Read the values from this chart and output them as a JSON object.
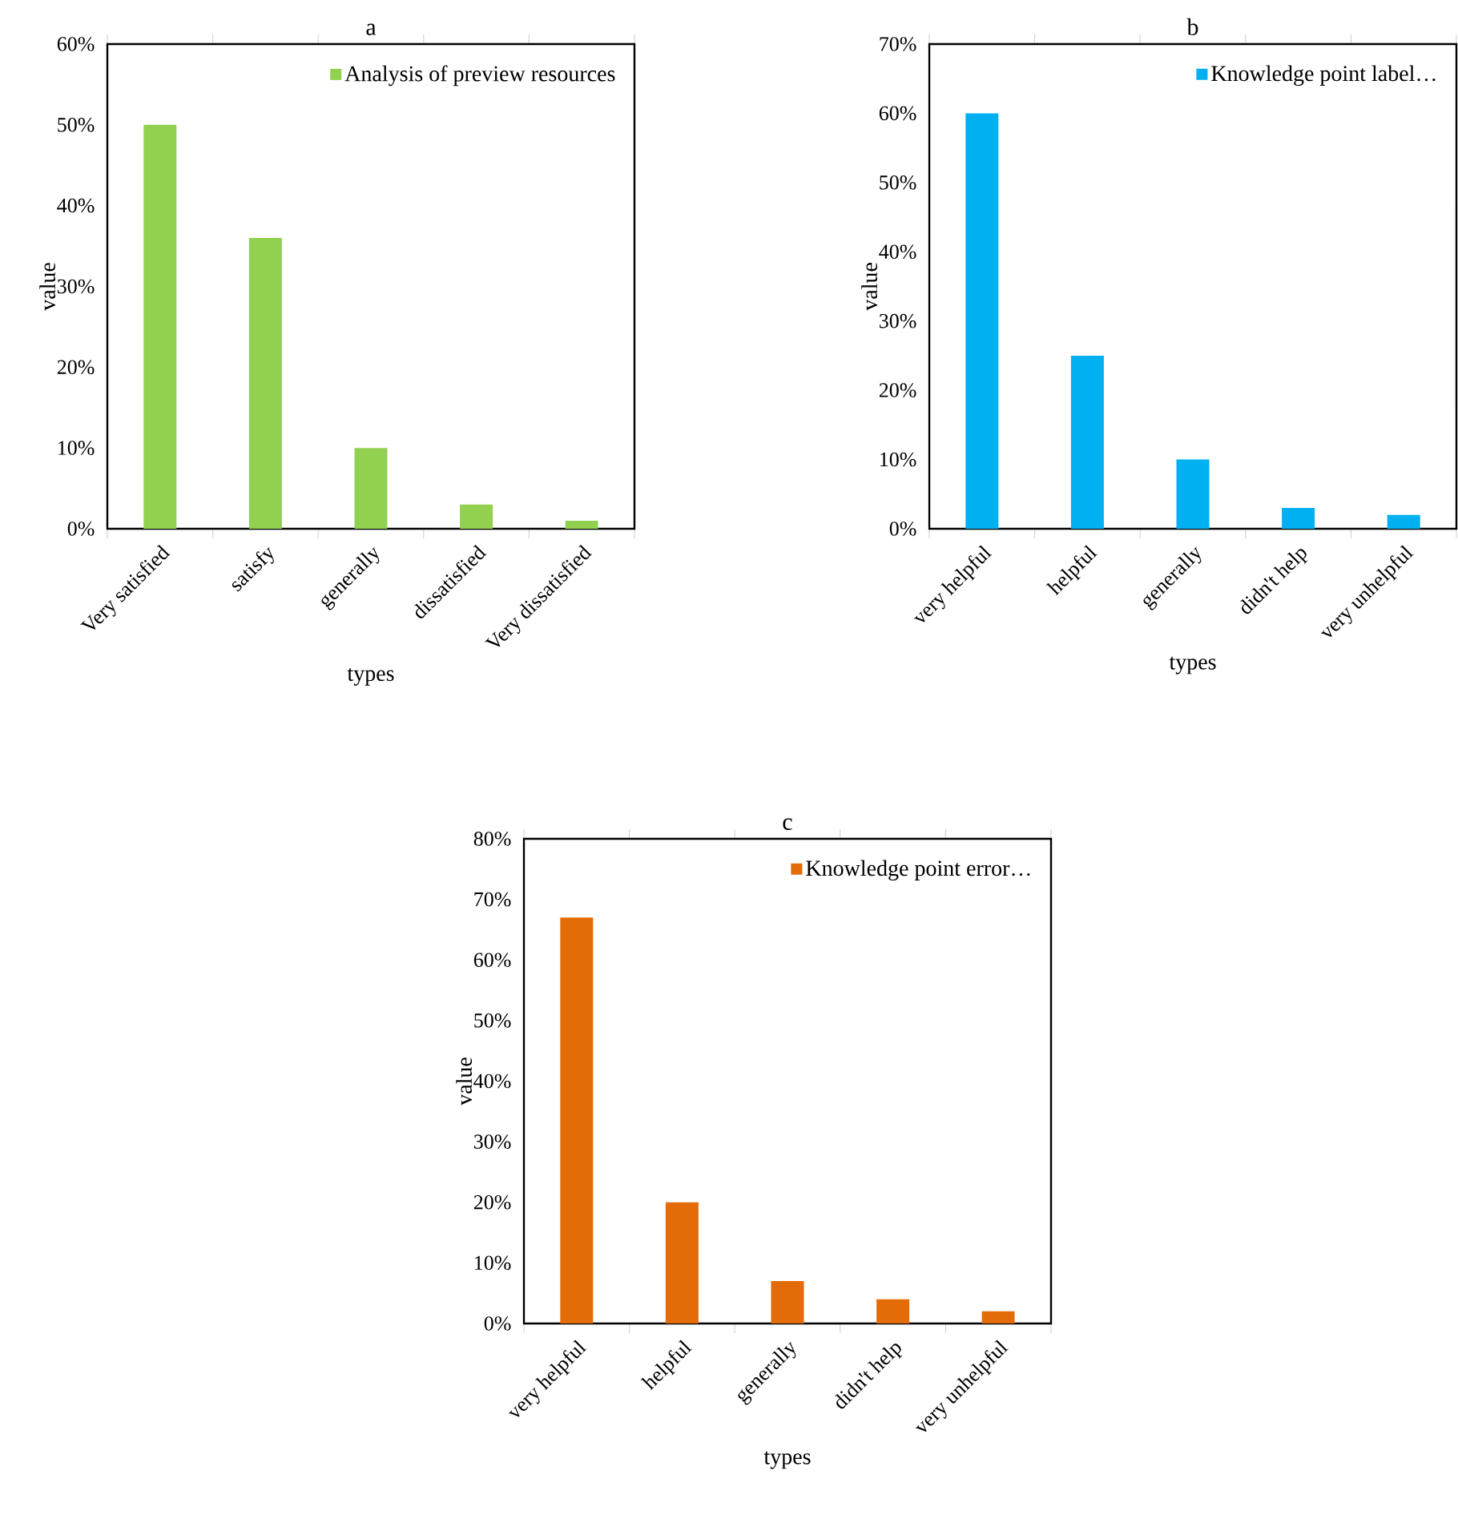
{
  "chart_data": [
    {
      "type": "bar",
      "title": "a",
      "xlabel": "types",
      "ylabel": "value",
      "legend": "top right",
      "categories": [
        "Very satisfied",
        "satisfy",
        "generally",
        "dissatisfied",
        "Very dissatisfied"
      ],
      "series": [
        {
          "name": "Analysis of preview resources",
          "color": "#92d050",
          "values": [
            50,
            36,
            10,
            3,
            1
          ]
        }
      ],
      "ylim": [
        0,
        60
      ],
      "yticks": [
        {
          "value": 0,
          "label": "0%"
        },
        {
          "value": 10,
          "label": "10%"
        },
        {
          "value": 20,
          "label": "20%"
        },
        {
          "value": 30,
          "label": "30%"
        },
        {
          "value": 40,
          "label": "40%"
        },
        {
          "value": 50,
          "label": "50%"
        },
        {
          "value": 60,
          "label": "60%"
        }
      ]
    },
    {
      "type": "bar",
      "title": "b",
      "xlabel": "types",
      "ylabel": "value",
      "legend": "top right",
      "categories": [
        "very helpful",
        "helpful",
        "generally",
        "didn't help",
        "very unhelpful"
      ],
      "series": [
        {
          "name": "Knowledge point label…",
          "color": "#00b0f0",
          "values": [
            60,
            25,
            10,
            3,
            2
          ]
        }
      ],
      "ylim": [
        0,
        70
      ],
      "yticks": [
        {
          "value": 0,
          "label": "0%"
        },
        {
          "value": 10,
          "label": "10%"
        },
        {
          "value": 20,
          "label": "20%"
        },
        {
          "value": 30,
          "label": "30%"
        },
        {
          "value": 40,
          "label": "40%"
        },
        {
          "value": 50,
          "label": "50%"
        },
        {
          "value": 60,
          "label": "60%"
        },
        {
          "value": 70,
          "label": "70%"
        }
      ]
    },
    {
      "type": "bar",
      "title": "c",
      "xlabel": "types",
      "ylabel": "value",
      "legend": "top right",
      "categories": [
        "very helpful",
        "helpful",
        "generally",
        "didn't help",
        "very unhelpful"
      ],
      "series": [
        {
          "name": "Knowledge point error…",
          "color": "#e36c09",
          "values": [
            67,
            20,
            7,
            4,
            2
          ]
        }
      ],
      "ylim": [
        0,
        80
      ],
      "yticks": [
        {
          "value": 0,
          "label": "0%"
        },
        {
          "value": 10,
          "label": "10%"
        },
        {
          "value": 20,
          "label": "20%"
        },
        {
          "value": 30,
          "label": "30%"
        },
        {
          "value": 40,
          "label": "40%"
        },
        {
          "value": 50,
          "label": "50%"
        },
        {
          "value": 60,
          "label": "60%"
        },
        {
          "value": 70,
          "label": "70%"
        },
        {
          "value": 80,
          "label": "80%"
        }
      ]
    }
  ]
}
